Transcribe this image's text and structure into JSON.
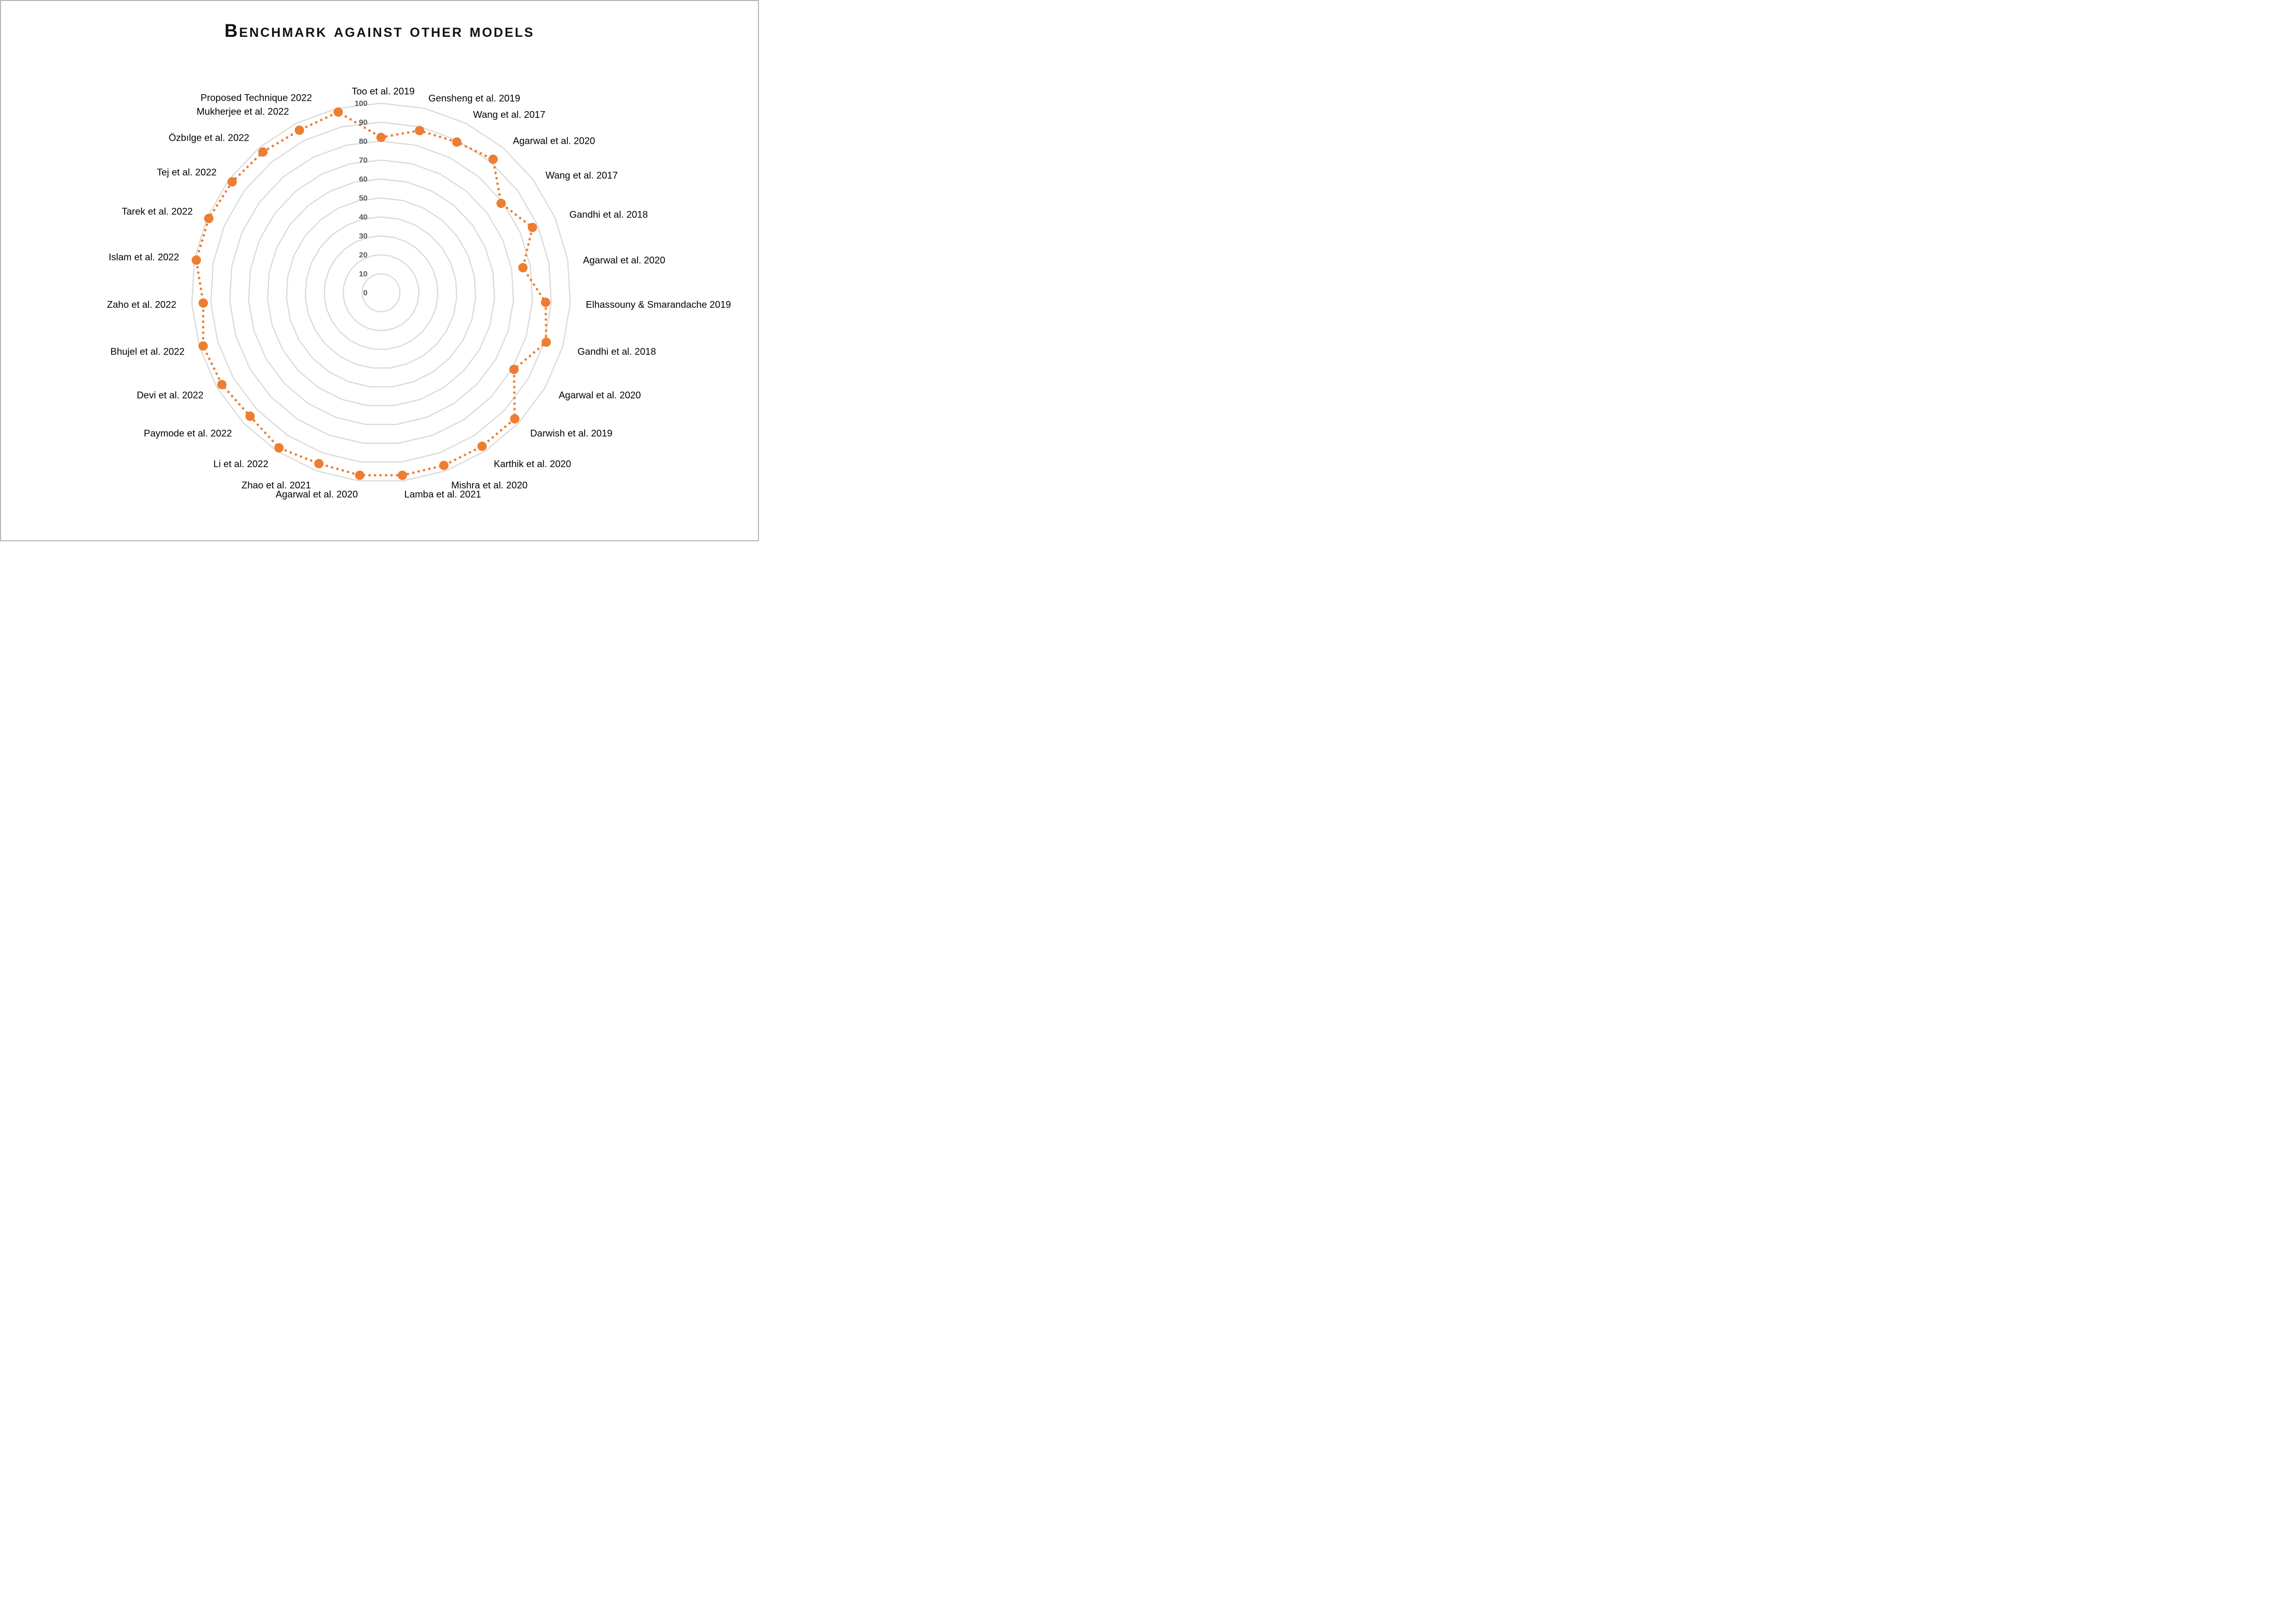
{
  "title": "Benchmark against other models",
  "page": {
    "background": "#ffffff",
    "border_color": "#b7b7b7"
  },
  "chart_data": {
    "type": "radar",
    "title": "Benchmark against other models",
    "categories": [
      "Too et al. 2019",
      "Gensheng et al. 2019",
      "Wang et al. 2017",
      "Agarwal et al. 2020",
      "Wang et al. 2017",
      "Gandhi et al. 2018",
      "Agarwal et al. 2020",
      "Elhassouny & Smarandache 2019",
      "Gandhi et al. 2018",
      "Agarwal et al. 2020",
      "Darwish et al. 2019",
      "Karthik et al. 2020",
      "Mishra et al. 2020",
      "Lamba et al. 2021",
      "Agarwal et al. 2020",
      "Zhao et al. 2021",
      "Li et al. 2022",
      "Paymode et al. 2022",
      "Devi et al. 2022",
      "Bhujel et al. 2022",
      "Zaho et al. 2022",
      "Islam et al. 2022",
      "Tarek et al. 2022",
      "Tej et al. 2022",
      "Özbılge et al. 2022",
      "Mukherjee et al. 2022",
      "Proposed Technique 2022"
    ],
    "series": [
      {
        "values": [
          82,
          88,
          89,
          92,
          79,
          87,
          76,
          87,
          91,
          81,
          97,
          97,
          97,
          97,
          97,
          96,
          98,
          95,
          97,
          98,
          94,
          99,
          99,
          98,
          97,
          96,
          98
        ]
      }
    ],
    "radial_axis": {
      "min": 0,
      "max": 100,
      "step": 10,
      "tick_labels": [
        "0",
        "10",
        "20",
        "30",
        "40",
        "50",
        "60",
        "70",
        "80",
        "90",
        "100"
      ]
    },
    "grid": true,
    "legend": false,
    "line_style": "dotted",
    "marker": "circle",
    "colors": {
      "series": "#ED7D31",
      "grid": "#D9D9D9",
      "tick": "#595959",
      "category_label": "#000000"
    }
  }
}
